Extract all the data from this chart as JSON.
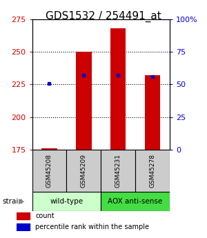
{
  "title": "GDS1532 / 254491_at",
  "samples": [
    "GSM45208",
    "GSM45209",
    "GSM45231",
    "GSM45278"
  ],
  "count_values": [
    176,
    250,
    268,
    232
  ],
  "percentile_values": [
    51,
    57,
    57,
    56
  ],
  "ylim_left": [
    175,
    275
  ],
  "ylim_right": [
    0,
    100
  ],
  "yticks_left": [
    175,
    200,
    225,
    250,
    275
  ],
  "yticks_right": [
    0,
    25,
    50,
    75,
    100
  ],
  "ytick_labels_right": [
    "0",
    "25",
    "50",
    "75",
    "100%"
  ],
  "bar_color": "#cc0000",
  "dot_color": "#0000cc",
  "bar_width": 0.45,
  "left_tick_color": "#cc0000",
  "right_tick_color": "#0000cc",
  "title_fontsize": 11,
  "tick_fontsize": 8,
  "sample_box_color": "#cccccc",
  "wildtype_color": "#ccffcc",
  "aox_color": "#44dd44",
  "group_info": [
    {
      "label": "wild-type",
      "start": 0,
      "end": 1
    },
    {
      "label": "AOX anti-sense",
      "start": 2,
      "end": 3
    }
  ]
}
